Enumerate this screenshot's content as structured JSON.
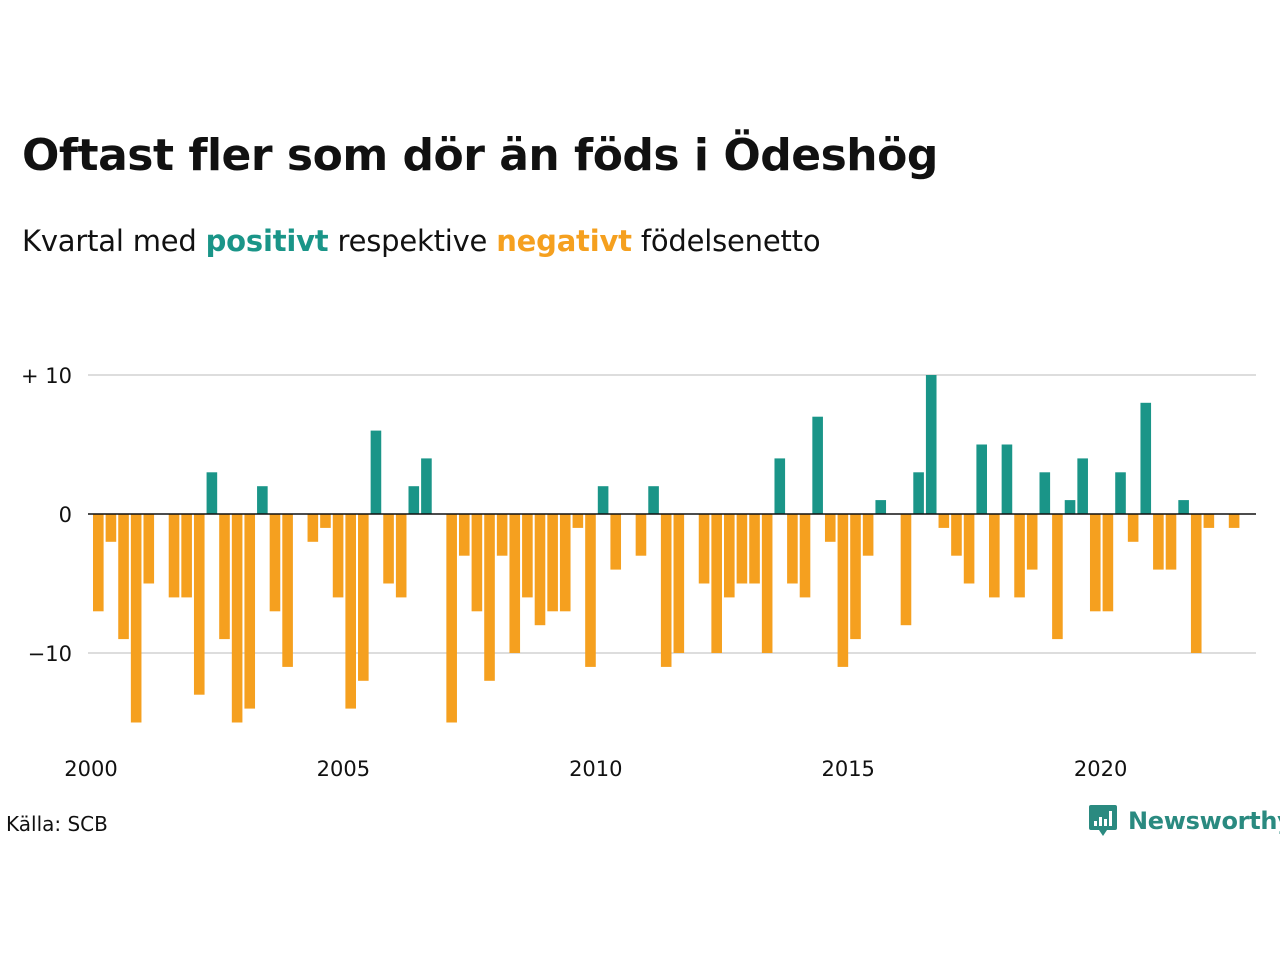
{
  "title": "Oftast fler som dör än föds i Ödeshög",
  "subtitle": {
    "prefix": "Kvartal med ",
    "positive": "positivt",
    "middle": " respektive ",
    "negative": "negativt",
    "suffix": " födelsenetto"
  },
  "source": "Källa: SCB",
  "brand": "Newsworthy",
  "colors": {
    "positive": "#1a9588",
    "negative": "#f5a01f",
    "grid": "#dddddd",
    "zero_line": "#111111",
    "brand": "#2a8a80"
  },
  "chart_data": {
    "type": "bar",
    "title": "Oftast fler som dör än föds i Ödeshög",
    "subtitle": "Kvartal med positivt respektive negativt födelsenetto",
    "xlabel": "",
    "ylabel": "",
    "x_start_year": 2000,
    "periods_per_year": 4,
    "y_ticks": [
      {
        "value": 10,
        "label": "+ 10"
      },
      {
        "value": 0,
        "label": "0"
      },
      {
        "value": -10,
        "label": "−10"
      }
    ],
    "x_ticks": [
      {
        "value": 2000,
        "label": "2000"
      },
      {
        "value": 2005,
        "label": "2005"
      },
      {
        "value": 2010,
        "label": "2010"
      },
      {
        "value": 2015,
        "label": "2015"
      },
      {
        "value": 2020,
        "label": "2020"
      }
    ],
    "ylim": [
      -15,
      10
    ],
    "grid": true,
    "values": [
      -7,
      -2,
      -9,
      -15,
      -5,
      0,
      -6,
      -6,
      -13,
      3,
      -9,
      -15,
      -14,
      2,
      -7,
      -11,
      0,
      -2,
      -1,
      -6,
      -14,
      -12,
      6,
      -5,
      -6,
      2,
      4,
      0,
      -15,
      -3,
      -7,
      -12,
      -3,
      -10,
      -6,
      -8,
      -7,
      -7,
      -1,
      -11,
      2,
      -4,
      0,
      -3,
      2,
      -11,
      -10,
      0,
      -5,
      -10,
      -6,
      -5,
      -5,
      -10,
      4,
      -5,
      -6,
      7,
      -2,
      -11,
      -9,
      -3,
      1,
      0,
      -8,
      3,
      10,
      -1,
      -3,
      -5,
      5,
      -6,
      5,
      -6,
      -4,
      3,
      -9,
      1,
      4,
      -7,
      -7,
      3,
      -2,
      8,
      -4,
      -4,
      1,
      -10,
      -1,
      0,
      -1
    ]
  }
}
